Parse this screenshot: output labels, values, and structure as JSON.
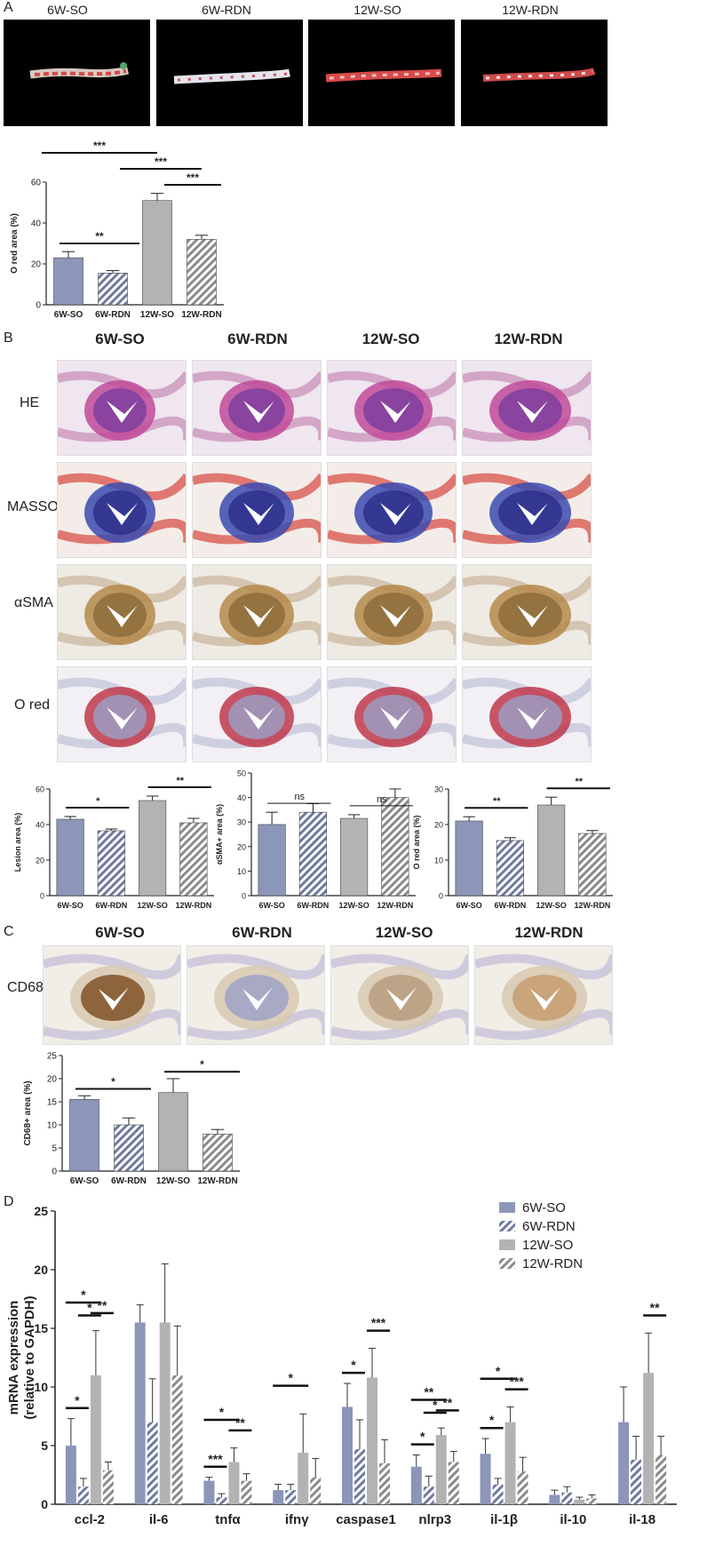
{
  "panels": {
    "A": "A",
    "B": "B",
    "C": "C",
    "D": "D"
  },
  "panelA": {
    "photo_titles": [
      "6W-SO",
      "6W-RDN",
      "12W-SO",
      "12W-RDN"
    ]
  },
  "panelB": {
    "col_titles": [
      "6W-SO",
      "6W-RDN",
      "12W-SO",
      "12W-RDN"
    ],
    "row_titles": [
      "HE",
      "MASSON",
      "αSMA",
      "O red"
    ]
  },
  "panelC": {
    "col_titles": [
      "6W-SO",
      "6W-RDN",
      "12W-SO",
      "12W-RDN"
    ],
    "row_title": "CD68"
  },
  "colors": {
    "so6": "#8c96b8",
    "rdn6_fill": "#6f7aa0",
    "so12": "#b3b3b3",
    "rdn12_fill": "#8a8a8a",
    "axis": "#222222"
  },
  "chart_data": [
    {
      "id": "A-ored",
      "type": "bar",
      "categories": [
        "6W-SO",
        "6W-RDN",
        "12W-SO",
        "12W-RDN"
      ],
      "values": [
        23,
        15.5,
        51,
        32
      ],
      "errors": [
        3,
        1.2,
        3.5,
        2
      ],
      "ylabel": "O red area (%)",
      "ylim": [
        0,
        60
      ],
      "yticks": [
        0,
        20,
        40,
        60
      ],
      "significance": [
        {
          "from": 0,
          "to": 2,
          "label": "***"
        },
        {
          "from": 1,
          "to": 2,
          "label": "***"
        },
        {
          "from": 2,
          "to": 3,
          "label": "***"
        },
        {
          "from": 0,
          "to": 1,
          "label": "**"
        }
      ]
    },
    {
      "id": "B-lesion",
      "type": "bar",
      "categories": [
        "6W-SO",
        "6W-RDN",
        "12W-SO",
        "12W-RDN"
      ],
      "values": [
        43,
        36.5,
        53.5,
        41
      ],
      "errors": [
        1.5,
        1,
        2.5,
        2.5
      ],
      "ylabel": "Lesion area (%)",
      "ylim": [
        0,
        60
      ],
      "yticks": [
        0,
        20,
        40,
        60
      ],
      "significance": [
        {
          "from": 0,
          "to": 1,
          "label": "*"
        },
        {
          "from": 2,
          "to": 3,
          "label": "**"
        }
      ]
    },
    {
      "id": "B-asma",
      "type": "bar",
      "categories": [
        "6W-SO",
        "6W-RDN",
        "12W-SO",
        "12W-RDN"
      ],
      "values": [
        29,
        34,
        31.5,
        40
      ],
      "errors": [
        5,
        3.5,
        1.5,
        3.5
      ],
      "ylabel": "αSMA+ area (%)",
      "ylim": [
        0,
        50
      ],
      "yticks": [
        0,
        10,
        20,
        30,
        40,
        50
      ],
      "significance": [
        {
          "from": 0,
          "to": 1,
          "label": "ns"
        },
        {
          "from": 2,
          "to": 3,
          "label": "ns"
        }
      ]
    },
    {
      "id": "B-ored",
      "type": "bar",
      "categories": [
        "6W-SO",
        "6W-RDN",
        "12W-SO",
        "12W-RDN"
      ],
      "values": [
        21,
        15.5,
        25.5,
        17.5
      ],
      "errors": [
        1.2,
        0.8,
        2.2,
        0.8
      ],
      "ylabel": "O red area (%)",
      "ylim": [
        0,
        30
      ],
      "yticks": [
        0,
        10,
        20,
        30
      ],
      "significance": [
        {
          "from": 0,
          "to": 1,
          "label": "**"
        },
        {
          "from": 2,
          "to": 3,
          "label": "**"
        }
      ]
    },
    {
      "id": "C-cd68",
      "type": "bar",
      "categories": [
        "6W-SO",
        "6W-RDN",
        "12W-SO",
        "12W-RDN"
      ],
      "values": [
        15.5,
        10,
        17,
        8
      ],
      "errors": [
        0.8,
        1.5,
        3,
        1
      ],
      "ylabel": "CD68+ area (%)",
      "ylim": [
        0,
        25
      ],
      "yticks": [
        0,
        5,
        10,
        15,
        20,
        25
      ],
      "significance": [
        {
          "from": 0,
          "to": 1,
          "label": "*"
        },
        {
          "from": 2,
          "to": 3,
          "label": "*"
        }
      ]
    },
    {
      "id": "D-mrna",
      "type": "bar",
      "categories": [
        "ccl-2",
        "il-6",
        "tnfα",
        "ifnγ",
        "caspase1",
        "nlrp3",
        "il-1β",
        "il-10",
        "il-18"
      ],
      "series": [
        {
          "name": "6W-SO",
          "values": [
            5,
            15.5,
            2,
            1.2,
            8.3,
            3.2,
            4.3,
            0.8,
            7
          ]
        },
        {
          "name": "6W-RDN",
          "values": [
            1.5,
            7,
            0.6,
            1.2,
            4.7,
            1.5,
            1.7,
            1,
            3.8
          ]
        },
        {
          "name": "12W-SO",
          "values": [
            11,
            15.5,
            3.6,
            4.4,
            10.8,
            5.9,
            7,
            0.4,
            11.2
          ]
        },
        {
          "name": "12W-RDN",
          "values": [
            2.9,
            11,
            2,
            2.3,
            3.5,
            3.6,
            2.8,
            0.5,
            4.2
          ]
        }
      ],
      "errors": [
        [
          2.3,
          1.5,
          0.3,
          0.5,
          2,
          1,
          1.3,
          0.4,
          3
        ],
        [
          0.7,
          3.7,
          0.3,
          0.5,
          2.5,
          0.9,
          0.5,
          0.5,
          2
        ],
        [
          3.8,
          5,
          1.2,
          3.3,
          2.5,
          0.6,
          1.3,
          0.2,
          3.4
        ],
        [
          0.7,
          4.2,
          0.6,
          1.6,
          2,
          0.9,
          1.2,
          0.3,
          1.6
        ]
      ],
      "ylabel": "mRNA expression\n(relative to GAPDH)",
      "ylim": [
        0,
        25
      ],
      "yticks": [
        0,
        5,
        10,
        15,
        20,
        25
      ],
      "legend": "top-right",
      "significance": [
        {
          "cat": 0,
          "from": 0,
          "to": 1,
          "label": "*"
        },
        {
          "cat": 0,
          "from": 0,
          "to": 2,
          "label": "*"
        },
        {
          "cat": 0,
          "from": 1,
          "to": 2,
          "label": "*"
        },
        {
          "cat": 0,
          "from": 2,
          "to": 3,
          "label": "**"
        },
        {
          "cat": 2,
          "from": 0,
          "to": 1,
          "label": "***"
        },
        {
          "cat": 2,
          "from": 0,
          "to": 2,
          "label": "*"
        },
        {
          "cat": 2,
          "from": 2,
          "to": 3,
          "label": "**"
        },
        {
          "cat": 3,
          "from": 0,
          "to": 2,
          "label": "*"
        },
        {
          "cat": 4,
          "from": 0,
          "to": 1,
          "label": "*"
        },
        {
          "cat": 4,
          "from": 2,
          "to": 3,
          "label": "***"
        },
        {
          "cat": 5,
          "from": 0,
          "to": 1,
          "label": "*"
        },
        {
          "cat": 5,
          "from": 0,
          "to": 2,
          "label": "**"
        },
        {
          "cat": 5,
          "from": 1,
          "to": 2,
          "label": "*"
        },
        {
          "cat": 5,
          "from": 2,
          "to": 3,
          "label": "**"
        },
        {
          "cat": 6,
          "from": 0,
          "to": 1,
          "label": "*"
        },
        {
          "cat": 6,
          "from": 0,
          "to": 2,
          "label": "*"
        },
        {
          "cat": 6,
          "from": 2,
          "to": 3,
          "label": "***"
        },
        {
          "cat": 8,
          "from": 2,
          "to": 3,
          "label": "**"
        }
      ]
    }
  ]
}
